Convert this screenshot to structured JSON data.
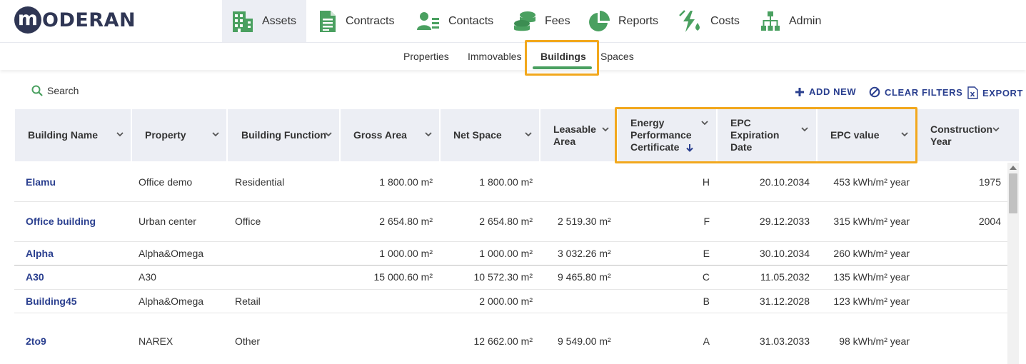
{
  "brand": {
    "logo_letter": "m",
    "logo_text": "ODERAN"
  },
  "nav": {
    "items": [
      {
        "label": "Assets",
        "icon": "building-icon"
      },
      {
        "label": "Contracts",
        "icon": "document-icon"
      },
      {
        "label": "Contacts",
        "icon": "contacts-icon"
      },
      {
        "label": "Fees",
        "icon": "coins-icon"
      },
      {
        "label": "Reports",
        "icon": "pie-chart-icon"
      },
      {
        "label": "Costs",
        "icon": "energy-icon"
      },
      {
        "label": "Admin",
        "icon": "org-chart-icon"
      }
    ],
    "active": "Assets"
  },
  "subnav": {
    "items": [
      "Properties",
      "Immovables",
      "Buildings",
      "Spaces"
    ],
    "active": "Buildings"
  },
  "toolbar": {
    "search_label": "Search",
    "add_new": "ADD NEW",
    "clear_filters": "CLEAR FILTERS",
    "export": "EXPORT"
  },
  "table": {
    "columns": [
      {
        "label": "Building Name"
      },
      {
        "label": "Property"
      },
      {
        "label": "Building Function"
      },
      {
        "label": "Gross Area"
      },
      {
        "label": "Net Space"
      },
      {
        "label": "Leasable Area"
      },
      {
        "label": "Energy Performance Certificate",
        "sorted": "desc"
      },
      {
        "label": "EPC Expiration Date"
      },
      {
        "label": "EPC value"
      },
      {
        "label": "Construction Year"
      }
    ],
    "rows": [
      {
        "name": "Elamu",
        "property": "Office demo",
        "function": "Residential",
        "gross": "1 800.00 m²",
        "net": "1 800.00 m²",
        "leasable": "",
        "epc": "H",
        "expiry": "20.10.2034",
        "value": "453 kWh/m² year",
        "year": "1975"
      },
      {
        "name": "Office building",
        "property": "Urban center",
        "function": "Office",
        "gross": "2 654.80 m²",
        "net": "2 654.80 m²",
        "leasable": "2 519.30 m²",
        "epc": "F",
        "expiry": "29.12.2033",
        "value": "315 kWh/m² year",
        "year": "2004"
      },
      {
        "name": "Alpha",
        "property": "Alpha&Omega",
        "function": "",
        "gross": "1 000.00 m²",
        "net": "1 000.00 m²",
        "leasable": "3 032.26 m²",
        "epc": "E",
        "expiry": "30.10.2034",
        "value": "260 kWh/m² year",
        "year": ""
      },
      {
        "name": "A30",
        "property": "A30",
        "function": "",
        "gross": "15 000.60 m²",
        "net": "10 572.30 m²",
        "leasable": "9 465.80 m²",
        "epc": "C",
        "expiry": "11.05.2032",
        "value": "135 kWh/m² year",
        "year": ""
      },
      {
        "name": "Building45",
        "property": "Alpha&Omega",
        "function": "Retail",
        "gross": "",
        "net": "2 000.00 m²",
        "leasable": "",
        "epc": "B",
        "expiry": "31.12.2028",
        "value": "123 kWh/m² year",
        "year": ""
      },
      {
        "name": "2to9",
        "property": "NAREX",
        "function": "Other",
        "gross": "",
        "net": "12 662.00 m²",
        "leasable": "9 549.00 m²",
        "epc": "A",
        "expiry": "31.03.2033",
        "value": "98 kWh/m² year",
        "year": ""
      }
    ]
  },
  "colors": {
    "accent_green": "#4aa060",
    "link_blue": "#2a3f8f",
    "highlight_orange": "#f2a81d",
    "header_bg": "#eceef4"
  }
}
